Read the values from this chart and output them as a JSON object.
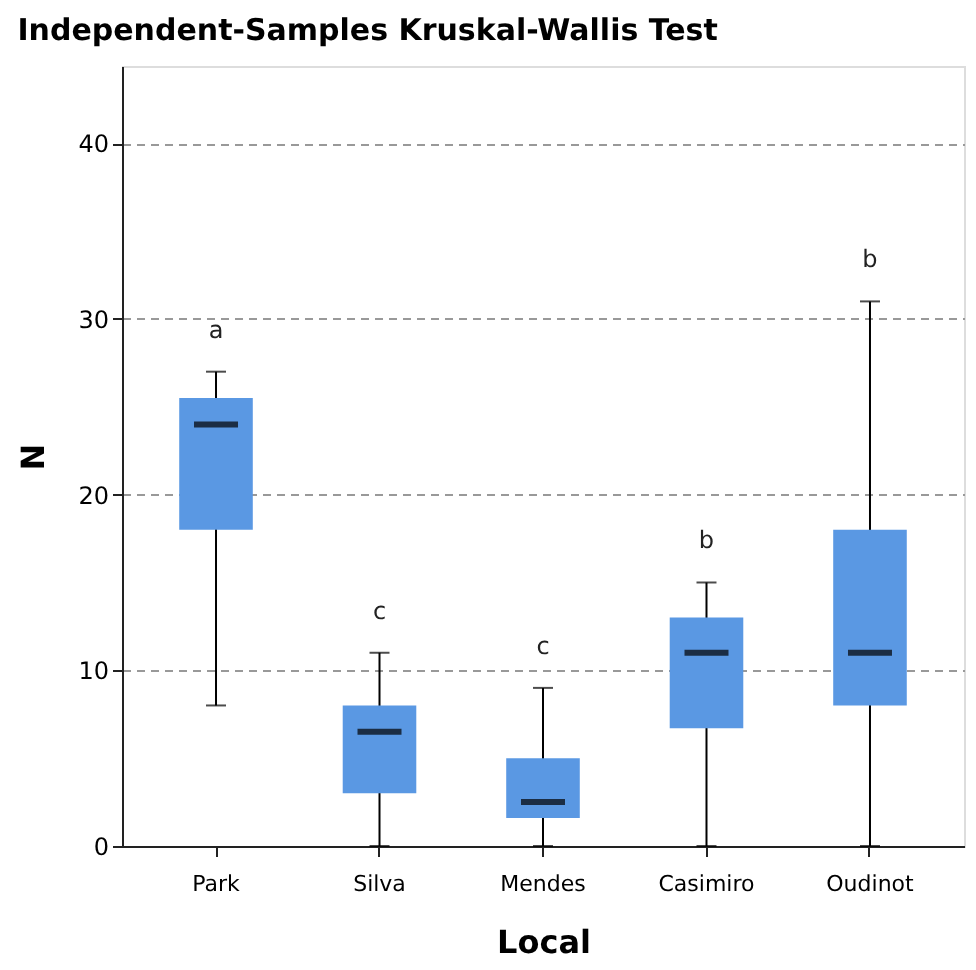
{
  "chart_data": {
    "type": "box",
    "title": "Independent-Samples Kruskal-Wallis Test",
    "xlabel": "Local",
    "ylabel": "N",
    "categories": [
      "Park",
      "Silva",
      "Mendes",
      "Casimiro",
      "Oudinot"
    ],
    "color": "#5a98e3",
    "boxes": [
      {
        "low": 8,
        "q1": 18,
        "median": 24,
        "q3": 25.5,
        "high": 27
      },
      {
        "low": 0,
        "q1": 3,
        "median": 6.5,
        "q3": 8,
        "high": 11
      },
      {
        "low": 0,
        "q1": 1.6,
        "median": 2.5,
        "q3": 5,
        "high": 9
      },
      {
        "low": 0,
        "q1": 6.7,
        "median": 11,
        "q3": 13,
        "high": 15
      },
      {
        "low": 0,
        "q1": 8,
        "median": 11,
        "q3": 18,
        "high": 31
      }
    ],
    "annotations": [
      "a",
      "c",
      "c",
      "b",
      "b"
    ],
    "ylim": [
      0,
      44.4
    ],
    "yticks": [
      0,
      10,
      20,
      30,
      40
    ],
    "grid": "y"
  }
}
